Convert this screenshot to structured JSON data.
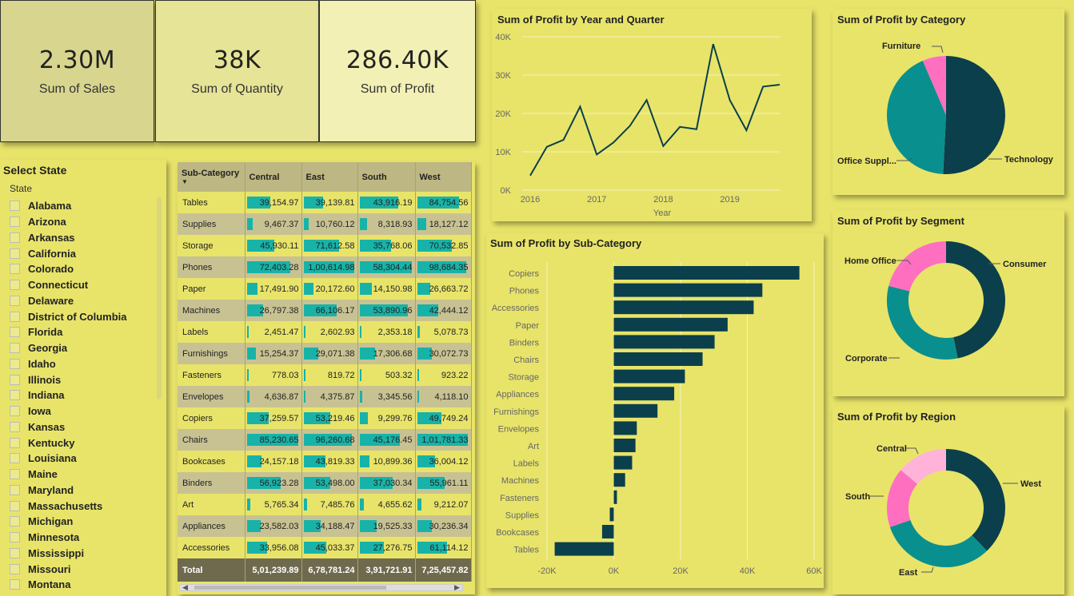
{
  "kpis": [
    {
      "value": "2.30M",
      "label": "Sum of Sales"
    },
    {
      "value": "38K",
      "label": "Sum of Quantity"
    },
    {
      "value": "286.40K",
      "label": "Sum of Profit"
    }
  ],
  "colors": {
    "background": "#e8e46a",
    "dark_teal": "#0b3f4c",
    "teal": "#0a8f8f",
    "pink": "#ff6fc0",
    "light_pink": "#ffb3d9",
    "data_bar": "#18b3a8"
  },
  "slicer": {
    "title": "Select State",
    "field": "State",
    "states": [
      "Alabama",
      "Arizona",
      "Arkansas",
      "California",
      "Colorado",
      "Connecticut",
      "Delaware",
      "District of Columbia",
      "Florida",
      "Georgia",
      "Idaho",
      "Illinois",
      "Indiana",
      "Iowa",
      "Kansas",
      "Kentucky",
      "Louisiana",
      "Maine",
      "Maryland",
      "Massachusetts",
      "Michigan",
      "Minnesota",
      "Mississippi",
      "Missouri",
      "Montana"
    ]
  },
  "matrix": {
    "headers": [
      "Sub-Category",
      "Central",
      "East",
      "South",
      "West"
    ],
    "rows": [
      {
        "name": "Tables",
        "values": [
          "39,154.97",
          "39,139.81",
          "43,916.19",
          "84,754.56"
        ],
        "bars": [
          39154.97,
          39139.81,
          43916.19,
          84754.56
        ]
      },
      {
        "name": "Supplies",
        "values": [
          "9,467.37",
          "10,760.12",
          "8,318.93",
          "18,127.12"
        ],
        "bars": [
          9467.37,
          10760.12,
          8318.93,
          18127.12
        ]
      },
      {
        "name": "Storage",
        "values": [
          "45,930.11",
          "71,612.58",
          "35,768.06",
          "70,532.85"
        ],
        "bars": [
          45930.11,
          71612.58,
          35768.06,
          70532.85
        ]
      },
      {
        "name": "Phones",
        "values": [
          "72,403.28",
          "1,00,614.98",
          "58,304.44",
          "98,684.35"
        ],
        "bars": [
          72403.28,
          100614.98,
          58304.44,
          98684.35
        ]
      },
      {
        "name": "Paper",
        "values": [
          "17,491.90",
          "20,172.60",
          "14,150.98",
          "26,663.72"
        ],
        "bars": [
          17491.9,
          20172.6,
          14150.98,
          26663.72
        ]
      },
      {
        "name": "Machines",
        "values": [
          "26,797.38",
          "66,106.17",
          "53,890.96",
          "42,444.12"
        ],
        "bars": [
          26797.38,
          66106.17,
          53890.96,
          42444.12
        ]
      },
      {
        "name": "Labels",
        "values": [
          "2,451.47",
          "2,602.93",
          "2,353.18",
          "5,078.73"
        ],
        "bars": [
          2451.47,
          2602.93,
          2353.18,
          5078.73
        ]
      },
      {
        "name": "Furnishings",
        "values": [
          "15,254.37",
          "29,071.38",
          "17,306.68",
          "30,072.73"
        ],
        "bars": [
          15254.37,
          29071.38,
          17306.68,
          30072.73
        ]
      },
      {
        "name": "Fasteners",
        "values": [
          "778.03",
          "819.72",
          "503.32",
          "923.22"
        ],
        "bars": [
          778.03,
          819.72,
          503.32,
          923.22
        ]
      },
      {
        "name": "Envelopes",
        "values": [
          "4,636.87",
          "4,375.87",
          "3,345.56",
          "4,118.10"
        ],
        "bars": [
          4636.87,
          4375.87,
          3345.56,
          4118.1
        ]
      },
      {
        "name": "Copiers",
        "values": [
          "37,259.57",
          "53,219.46",
          "9,299.76",
          "49,749.24"
        ],
        "bars": [
          37259.57,
          53219.46,
          9299.76,
          49749.24
        ]
      },
      {
        "name": "Chairs",
        "values": [
          "85,230.65",
          "96,260.68",
          "45,176.45",
          "1,01,781.33"
        ],
        "bars": [
          85230.65,
          96260.68,
          45176.45,
          101781.33
        ]
      },
      {
        "name": "Bookcases",
        "values": [
          "24,157.18",
          "43,819.33",
          "10,899.36",
          "36,004.12"
        ],
        "bars": [
          24157.18,
          43819.33,
          10899.36,
          36004.12
        ]
      },
      {
        "name": "Binders",
        "values": [
          "56,923.28",
          "53,498.00",
          "37,030.34",
          "55,961.11"
        ],
        "bars": [
          56923.28,
          53498.0,
          37030.34,
          55961.11
        ]
      },
      {
        "name": "Art",
        "values": [
          "5,765.34",
          "7,485.76",
          "4,655.62",
          "9,212.07"
        ],
        "bars": [
          5765.34,
          7485.76,
          4655.62,
          9212.07
        ]
      },
      {
        "name": "Appliances",
        "values": [
          "23,582.03",
          "34,188.47",
          "19,525.33",
          "30,236.34"
        ],
        "bars": [
          23582.03,
          34188.47,
          19525.33,
          30236.34
        ]
      },
      {
        "name": "Accessories",
        "values": [
          "33,956.08",
          "45,033.37",
          "27,276.75",
          "61,114.12"
        ],
        "bars": [
          33956.08,
          45033.37,
          27276.75,
          61114.12
        ]
      }
    ],
    "total": {
      "name": "Total",
      "values": [
        "5,01,239.89",
        "6,78,781.24",
        "3,91,721.91",
        "7,25,457.82"
      ]
    }
  },
  "chart_data": [
    {
      "type": "line",
      "title": "Sum of Profit by Year and Quarter",
      "xlabel": "Year",
      "ylabel": "",
      "x_ticks": [
        "2016",
        "2017",
        "2018",
        "2019"
      ],
      "y_ticks": [
        "0K",
        "10K",
        "20K",
        "30K",
        "40K"
      ],
      "ylim": [
        0,
        40000
      ],
      "series": [
        {
          "values": [
            3800,
            11300,
            13100,
            21800,
            9300,
            12400,
            16800,
            23500,
            11500,
            16500,
            15900,
            38100,
            23500,
            15600,
            27000,
            27500
          ]
        }
      ]
    },
    {
      "type": "bar",
      "orientation": "horizontal",
      "title": "Sum of Profit by Sub-Category",
      "categories": [
        "Copiers",
        "Phones",
        "Accessories",
        "Paper",
        "Binders",
        "Chairs",
        "Storage",
        "Appliances",
        "Furnishings",
        "Envelopes",
        "Art",
        "Labels",
        "Machines",
        "Fasteners",
        "Supplies",
        "Bookcases",
        "Tables"
      ],
      "values": [
        55600,
        44500,
        41900,
        34100,
        30200,
        26600,
        21300,
        18100,
        13100,
        6900,
        6500,
        5500,
        3400,
        950,
        -1200,
        -3500,
        -17700
      ],
      "x_ticks": [
        "-20K",
        "0K",
        "20K",
        "40K",
        "60K"
      ],
      "xlim": [
        -20000,
        60000
      ]
    },
    {
      "type": "pie",
      "title": "Sum of Profit by Category",
      "labels": [
        "Technology",
        "Office Suppl...",
        "Furniture"
      ],
      "values": [
        145455,
        122491,
        18451
      ]
    },
    {
      "type": "pie",
      "donut": true,
      "title": "Sum of Profit by Segment",
      "labels": [
        "Consumer",
        "Corporate",
        "Home Office"
      ],
      "values": [
        134119,
        91979,
        60299
      ]
    },
    {
      "type": "pie",
      "donut": true,
      "title": "Sum of Profit by Region",
      "labels": [
        "West",
        "East",
        "South",
        "Central"
      ],
      "values": [
        108418,
        91523,
        46749,
        39706
      ]
    }
  ]
}
